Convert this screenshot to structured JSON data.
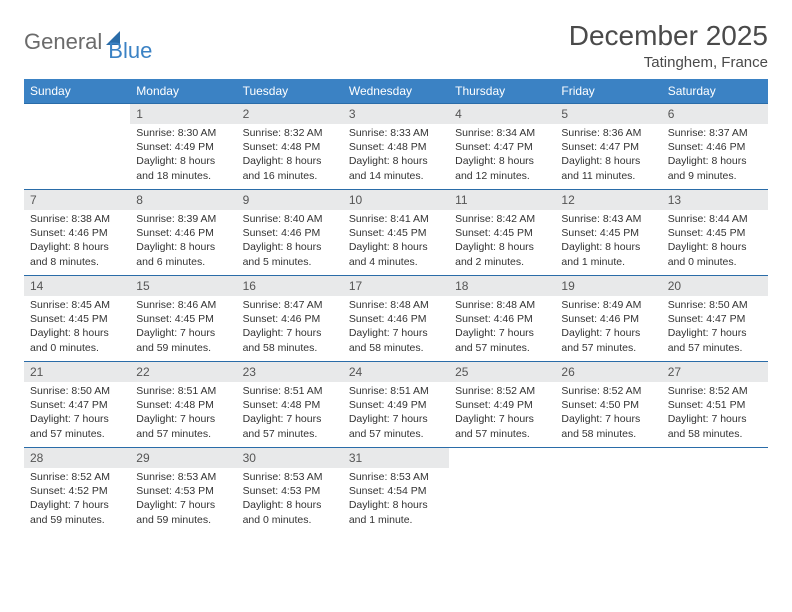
{
  "brand": {
    "part1": "General",
    "part2": "Blue"
  },
  "title": "December 2025",
  "location": "Tatinghem, France",
  "colors": {
    "header_bg": "#3b82c4",
    "header_text": "#ffffff",
    "daynum_bg": "#e8e9ea",
    "border": "#2a6ca8",
    "text": "#333333",
    "title_text": "#4a4a4a",
    "logo_gray": "#6b6b6b",
    "logo_blue": "#3b82c4"
  },
  "calendar": {
    "type": "table",
    "weekdays": [
      "Sunday",
      "Monday",
      "Tuesday",
      "Wednesday",
      "Thursday",
      "Friday",
      "Saturday"
    ],
    "weeks": [
      [
        null,
        {
          "n": "1",
          "sr": "8:30 AM",
          "ss": "4:49 PM",
          "dl": "8 hours and 18 minutes."
        },
        {
          "n": "2",
          "sr": "8:32 AM",
          "ss": "4:48 PM",
          "dl": "8 hours and 16 minutes."
        },
        {
          "n": "3",
          "sr": "8:33 AM",
          "ss": "4:48 PM",
          "dl": "8 hours and 14 minutes."
        },
        {
          "n": "4",
          "sr": "8:34 AM",
          "ss": "4:47 PM",
          "dl": "8 hours and 12 minutes."
        },
        {
          "n": "5",
          "sr": "8:36 AM",
          "ss": "4:47 PM",
          "dl": "8 hours and 11 minutes."
        },
        {
          "n": "6",
          "sr": "8:37 AM",
          "ss": "4:46 PM",
          "dl": "8 hours and 9 minutes."
        }
      ],
      [
        {
          "n": "7",
          "sr": "8:38 AM",
          "ss": "4:46 PM",
          "dl": "8 hours and 8 minutes."
        },
        {
          "n": "8",
          "sr": "8:39 AM",
          "ss": "4:46 PM",
          "dl": "8 hours and 6 minutes."
        },
        {
          "n": "9",
          "sr": "8:40 AM",
          "ss": "4:46 PM",
          "dl": "8 hours and 5 minutes."
        },
        {
          "n": "10",
          "sr": "8:41 AM",
          "ss": "4:45 PM",
          "dl": "8 hours and 4 minutes."
        },
        {
          "n": "11",
          "sr": "8:42 AM",
          "ss": "4:45 PM",
          "dl": "8 hours and 2 minutes."
        },
        {
          "n": "12",
          "sr": "8:43 AM",
          "ss": "4:45 PM",
          "dl": "8 hours and 1 minute."
        },
        {
          "n": "13",
          "sr": "8:44 AM",
          "ss": "4:45 PM",
          "dl": "8 hours and 0 minutes."
        }
      ],
      [
        {
          "n": "14",
          "sr": "8:45 AM",
          "ss": "4:45 PM",
          "dl": "8 hours and 0 minutes."
        },
        {
          "n": "15",
          "sr": "8:46 AM",
          "ss": "4:45 PM",
          "dl": "7 hours and 59 minutes."
        },
        {
          "n": "16",
          "sr": "8:47 AM",
          "ss": "4:46 PM",
          "dl": "7 hours and 58 minutes."
        },
        {
          "n": "17",
          "sr": "8:48 AM",
          "ss": "4:46 PM",
          "dl": "7 hours and 58 minutes."
        },
        {
          "n": "18",
          "sr": "8:48 AM",
          "ss": "4:46 PM",
          "dl": "7 hours and 57 minutes."
        },
        {
          "n": "19",
          "sr": "8:49 AM",
          "ss": "4:46 PM",
          "dl": "7 hours and 57 minutes."
        },
        {
          "n": "20",
          "sr": "8:50 AM",
          "ss": "4:47 PM",
          "dl": "7 hours and 57 minutes."
        }
      ],
      [
        {
          "n": "21",
          "sr": "8:50 AM",
          "ss": "4:47 PM",
          "dl": "7 hours and 57 minutes."
        },
        {
          "n": "22",
          "sr": "8:51 AM",
          "ss": "4:48 PM",
          "dl": "7 hours and 57 minutes."
        },
        {
          "n": "23",
          "sr": "8:51 AM",
          "ss": "4:48 PM",
          "dl": "7 hours and 57 minutes."
        },
        {
          "n": "24",
          "sr": "8:51 AM",
          "ss": "4:49 PM",
          "dl": "7 hours and 57 minutes."
        },
        {
          "n": "25",
          "sr": "8:52 AM",
          "ss": "4:49 PM",
          "dl": "7 hours and 57 minutes."
        },
        {
          "n": "26",
          "sr": "8:52 AM",
          "ss": "4:50 PM",
          "dl": "7 hours and 58 minutes."
        },
        {
          "n": "27",
          "sr": "8:52 AM",
          "ss": "4:51 PM",
          "dl": "7 hours and 58 minutes."
        }
      ],
      [
        {
          "n": "28",
          "sr": "8:52 AM",
          "ss": "4:52 PM",
          "dl": "7 hours and 59 minutes."
        },
        {
          "n": "29",
          "sr": "8:53 AM",
          "ss": "4:53 PM",
          "dl": "7 hours and 59 minutes."
        },
        {
          "n": "30",
          "sr": "8:53 AM",
          "ss": "4:53 PM",
          "dl": "8 hours and 0 minutes."
        },
        {
          "n": "31",
          "sr": "8:53 AM",
          "ss": "4:54 PM",
          "dl": "8 hours and 1 minute."
        },
        null,
        null,
        null
      ]
    ],
    "labels": {
      "sunrise": "Sunrise:",
      "sunset": "Sunset:",
      "daylight": "Daylight:"
    }
  }
}
